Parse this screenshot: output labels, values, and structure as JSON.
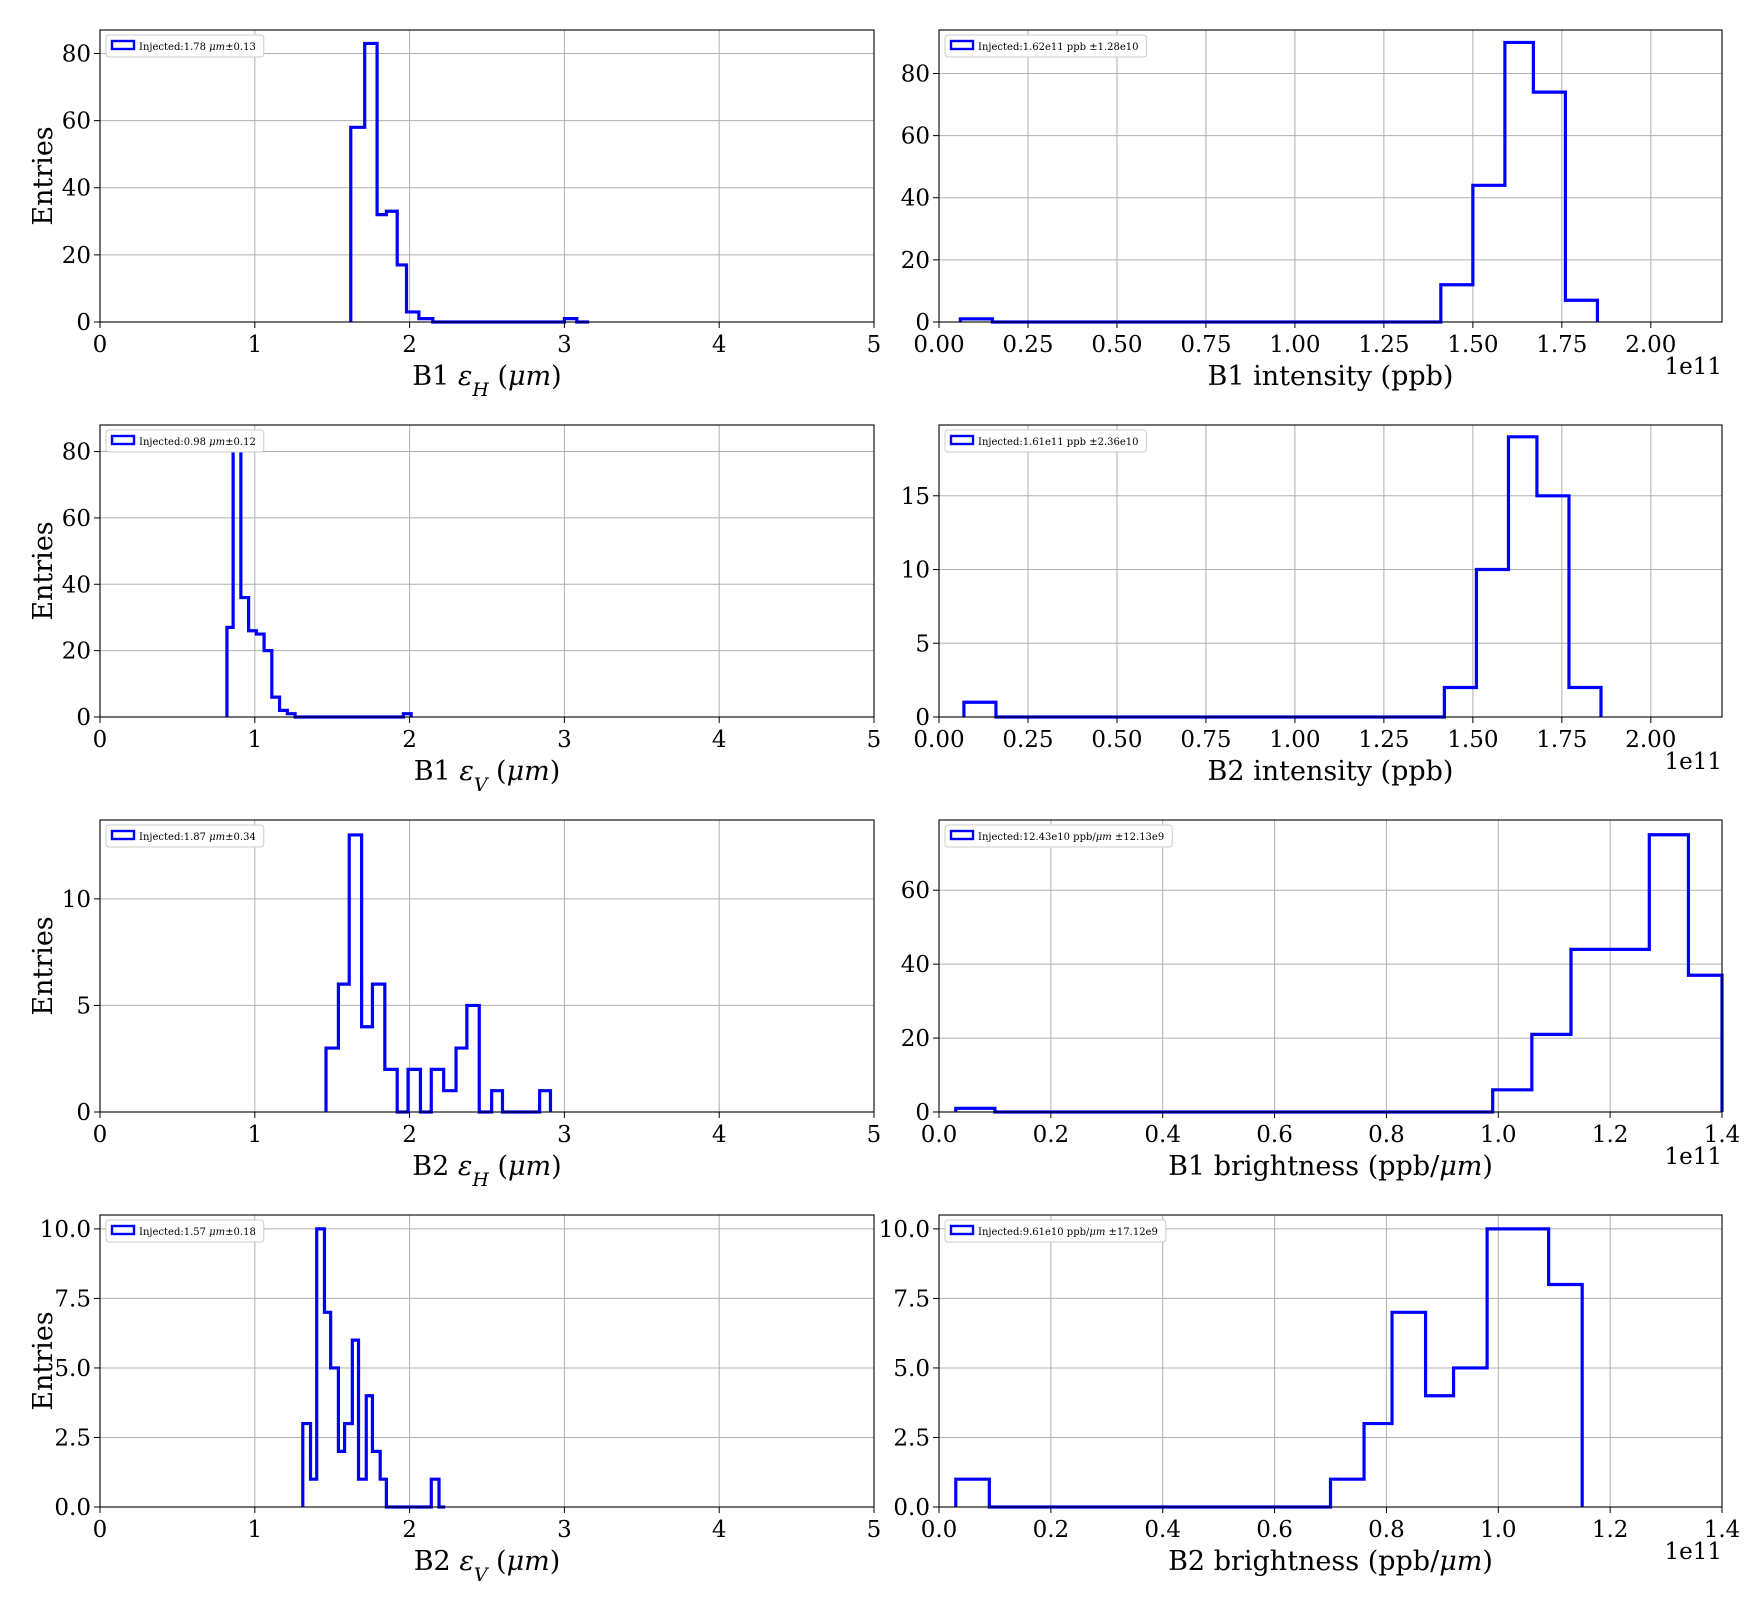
{
  "figure": {
    "panel_count": 8,
    "layout": "4 rows x 2 columns"
  },
  "chart_data": [
    {
      "type": "histogram",
      "xlabel": "B1 εH (μm)",
      "ylabel": "Entries",
      "legend": "Injected:1.78 μm±0.13",
      "legend_position": "top-left",
      "xlim": [
        0,
        5
      ],
      "ylim": [
        0,
        87
      ],
      "xticks": [
        0,
        1,
        2,
        3,
        4,
        5
      ],
      "xtick_labels": [
        "0",
        "1",
        "2",
        "3",
        "4",
        "5"
      ],
      "yticks": [
        0,
        20,
        40,
        60,
        80
      ],
      "ytick_labels": [
        "0",
        "20",
        "40",
        "60",
        "80"
      ],
      "offset_label": "",
      "grid": true,
      "color": "#0000ff",
      "bin_edges": [
        1.62,
        1.71,
        1.79,
        1.85,
        1.92,
        1.98,
        2.06,
        2.15,
        2.2,
        2.25,
        2.3,
        2.4,
        2.5,
        2.6,
        2.7,
        2.8,
        2.9,
        3.0,
        3.08,
        3.16
      ],
      "counts": [
        58,
        83,
        32,
        33,
        17,
        3,
        1,
        0,
        0,
        0,
        0,
        0,
        0,
        0,
        0,
        0,
        0,
        1,
        0
      ]
    },
    {
      "type": "histogram",
      "xlabel": "B1 intensity (ppb)",
      "ylabel": "",
      "legend": "Injected:1.62e11 ppb ±1.28e10",
      "legend_position": "top-left",
      "xlim": [
        0,
        2.2
      ],
      "ylim": [
        0,
        94
      ],
      "xticks": [
        0,
        0.25,
        0.5,
        0.75,
        1.0,
        1.25,
        1.5,
        1.75,
        2.0
      ],
      "xtick_labels": [
        "0.00",
        "0.25",
        "0.50",
        "0.75",
        "1.00",
        "1.25",
        "1.50",
        "1.75",
        "2.00"
      ],
      "yticks": [
        0,
        20,
        40,
        60,
        80
      ],
      "ytick_labels": [
        "0",
        "20",
        "40",
        "60",
        "80"
      ],
      "offset_label": "1e11",
      "grid": true,
      "color": "#0000ff",
      "bin_edges": [
        0.06,
        0.15,
        0.24,
        0.33,
        0.42,
        0.51,
        0.6,
        0.69,
        0.78,
        0.87,
        0.96,
        1.05,
        1.14,
        1.23,
        1.32,
        1.41,
        1.5,
        1.59,
        1.67,
        1.76,
        1.85
      ],
      "counts": [
        1,
        0,
        0,
        0,
        0,
        0,
        0,
        0,
        0,
        0,
        0,
        0,
        0,
        0,
        0,
        12,
        44,
        90,
        74,
        7
      ]
    },
    {
      "type": "histogram",
      "xlabel": "B1 εV (μm)",
      "ylabel": "Entries",
      "legend": "Injected:0.98 μm±0.12",
      "legend_position": "top-left",
      "xlim": [
        0,
        5
      ],
      "ylim": [
        0,
        88
      ],
      "xticks": [
        0,
        1,
        2,
        3,
        4,
        5
      ],
      "xtick_labels": [
        "0",
        "1",
        "2",
        "3",
        "4",
        "5"
      ],
      "yticks": [
        0,
        20,
        40,
        60,
        80
      ],
      "ytick_labels": [
        "0",
        "20",
        "40",
        "60",
        "80"
      ],
      "offset_label": "",
      "grid": true,
      "color": "#0000ff",
      "bin_edges": [
        0.82,
        0.86,
        0.91,
        0.96,
        1.01,
        1.06,
        1.11,
        1.16,
        1.21,
        1.26,
        1.31,
        1.36,
        1.42,
        1.5,
        1.6,
        1.7,
        1.8,
        1.9,
        1.96,
        2.01
      ],
      "counts": [
        27,
        84,
        36,
        26,
        25,
        20,
        6,
        2,
        1,
        0,
        0,
        0,
        0,
        0,
        0,
        0,
        0,
        0,
        1
      ]
    },
    {
      "type": "histogram",
      "xlabel": "B2 intensity (ppb)",
      "ylabel": "",
      "legend": "Injected:1.61e11 ppb ±2.36e10",
      "legend_position": "top-left",
      "xlim": [
        0,
        2.2
      ],
      "ylim": [
        0,
        19.8
      ],
      "xticks": [
        0,
        0.25,
        0.5,
        0.75,
        1.0,
        1.25,
        1.5,
        1.75,
        2.0
      ],
      "xtick_labels": [
        "0.00",
        "0.25",
        "0.50",
        "0.75",
        "1.00",
        "1.25",
        "1.50",
        "1.75",
        "2.00"
      ],
      "yticks": [
        0,
        5,
        10,
        15
      ],
      "ytick_labels": [
        "0",
        "5",
        "10",
        "15"
      ],
      "offset_label": "1e11",
      "grid": true,
      "color": "#0000ff",
      "bin_edges": [
        0.07,
        0.16,
        0.25,
        0.34,
        0.43,
        0.52,
        0.61,
        0.7,
        0.79,
        0.88,
        0.97,
        1.06,
        1.15,
        1.24,
        1.33,
        1.42,
        1.51,
        1.6,
        1.68,
        1.77,
        1.86
      ],
      "counts": [
        1,
        0,
        0,
        0,
        0,
        0,
        0,
        0,
        0,
        0,
        0,
        0,
        0,
        0,
        0,
        2,
        10,
        19,
        15,
        2
      ]
    },
    {
      "type": "histogram",
      "xlabel": "B2 εH (μm)",
      "ylabel": "Entries",
      "legend": "Injected:1.87 μm±0.34",
      "legend_position": "top-left",
      "xlim": [
        0,
        5
      ],
      "ylim": [
        0,
        13.7
      ],
      "xticks": [
        0,
        1,
        2,
        3,
        4,
        5
      ],
      "xtick_labels": [
        "0",
        "1",
        "2",
        "3",
        "4",
        "5"
      ],
      "yticks": [
        0,
        5,
        10
      ],
      "ytick_labels": [
        "0",
        "5",
        "10"
      ],
      "offset_label": "",
      "grid": true,
      "color": "#0000ff",
      "bin_edges": [
        1.46,
        1.54,
        1.61,
        1.69,
        1.76,
        1.84,
        1.92,
        1.99,
        2.07,
        2.14,
        2.22,
        2.3,
        2.37,
        2.45,
        2.53,
        2.6,
        2.68,
        2.76,
        2.84,
        2.91
      ],
      "counts": [
        3,
        6,
        13,
        4,
        6,
        2,
        0,
        2,
        0,
        2,
        1,
        3,
        5,
        0,
        1,
        0,
        0,
        0,
        1
      ]
    },
    {
      "type": "histogram",
      "xlabel": "B1 brightness (ppb/μm)",
      "ylabel": "",
      "legend": "Injected:12.43e10 ppb/μm ±12.13e9",
      "legend_position": "top-left",
      "xlim": [
        0,
        1.4
      ],
      "ylim": [
        0,
        79
      ],
      "xticks": [
        0,
        0.2,
        0.4,
        0.6,
        0.8,
        1.0,
        1.2,
        1.4
      ],
      "xtick_labels": [
        "0.0",
        "0.2",
        "0.4",
        "0.6",
        "0.8",
        "1.0",
        "1.2",
        "1.4"
      ],
      "yticks": [
        0,
        20,
        40,
        60
      ],
      "ytick_labels": [
        "0",
        "20",
        "40",
        "60"
      ],
      "offset_label": "1e11",
      "grid": true,
      "color": "#0000ff",
      "bin_edges": [
        0.03,
        0.1,
        0.17,
        0.24,
        0.31,
        0.38,
        0.45,
        0.52,
        0.59,
        0.66,
        0.73,
        0.8,
        0.87,
        0.93,
        0.99,
        1.06,
        1.13,
        1.22,
        1.27,
        1.34,
        1.4
      ],
      "counts": [
        1,
        0,
        0,
        0,
        0,
        0,
        0,
        0,
        0,
        0,
        0,
        0,
        0,
        0,
        6,
        21,
        44,
        44,
        75,
        37
      ]
    },
    {
      "type": "histogram",
      "xlabel": "B2 εV (μm)",
      "ylabel": "Entries",
      "legend": "Injected:1.57 μm±0.18",
      "legend_position": "top-left",
      "xlim": [
        0,
        5
      ],
      "ylim": [
        0,
        10.5
      ],
      "xticks": [
        0,
        1,
        2,
        3,
        4,
        5
      ],
      "xtick_labels": [
        "0",
        "1",
        "2",
        "3",
        "4",
        "5"
      ],
      "yticks": [
        0,
        2.5,
        5.0,
        7.5,
        10.0
      ],
      "ytick_labels": [
        "0.0",
        "2.5",
        "5.0",
        "7.5",
        "10.0"
      ],
      "offset_label": "",
      "grid": true,
      "color": "#0000ff",
      "bin_edges": [
        1.31,
        1.36,
        1.4,
        1.45,
        1.49,
        1.54,
        1.58,
        1.63,
        1.67,
        1.72,
        1.76,
        1.81,
        1.85,
        1.9,
        1.98,
        2.06,
        2.14,
        2.19,
        2.23
      ],
      "counts": [
        3,
        1,
        10,
        7,
        5,
        2,
        3,
        6,
        1,
        4,
        2,
        1,
        0,
        0,
        0,
        0,
        1,
        0
      ]
    },
    {
      "type": "histogram",
      "xlabel": "B2 brightness (ppb/μm)",
      "ylabel": "",
      "legend": "Injected:9.61e10 ppb/μm ±17.12e9",
      "legend_position": "top-left",
      "xlim": [
        0,
        1.4
      ],
      "ylim": [
        0,
        10.5
      ],
      "xticks": [
        0,
        0.2,
        0.4,
        0.6,
        0.8,
        1.0,
        1.2,
        1.4
      ],
      "xtick_labels": [
        "0.0",
        "0.2",
        "0.4",
        "0.6",
        "0.8",
        "1.0",
        "1.2",
        "1.4"
      ],
      "yticks": [
        0,
        2.5,
        5.0,
        7.5,
        10.0
      ],
      "ytick_labels": [
        "0.0",
        "2.5",
        "5.0",
        "7.5",
        "10.0"
      ],
      "offset_label": "1e11",
      "grid": true,
      "color": "#0000ff",
      "bin_edges": [
        0.03,
        0.09,
        0.7,
        0.76,
        0.81,
        0.87,
        0.92,
        0.98,
        1.03,
        1.09,
        1.15
      ],
      "counts": [
        1,
        0,
        1,
        3,
        7,
        4,
        5,
        10,
        10,
        8
      ]
    }
  ]
}
